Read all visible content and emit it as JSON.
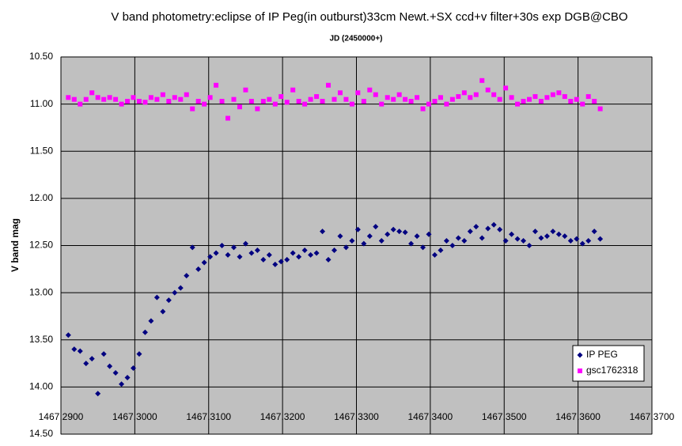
{
  "chart_data": {
    "type": "scatter",
    "title": "V band photometry:eclipse of IP Peg(in outburst)33cm Newt.+SX ccd+v filter+30s exp DGB@CBO",
    "x_label": "JD (2450000+)",
    "y_label": "V band mag",
    "x": [
      1467.291,
      1467.2918,
      1467.2926,
      1467.2934,
      1467.2942,
      1467.295,
      1467.2958,
      1467.2966,
      1467.2974,
      1467.2982,
      1467.299,
      1467.2998,
      1467.3006,
      1467.3014,
      1467.3022,
      1467.303,
      1467.3038,
      1467.3046,
      1467.3054,
      1467.3062,
      1467.307,
      1467.3078,
      1467.3086,
      1467.3094,
      1467.3102,
      1467.311,
      1467.3118,
      1467.3126,
      1467.3134,
      1467.3142,
      1467.315,
      1467.3158,
      1467.3166,
      1467.3174,
      1467.3182,
      1467.319,
      1467.3198,
      1467.3206,
      1467.3214,
      1467.3222,
      1467.323,
      1467.3238,
      1467.3246,
      1467.3254,
      1467.3262,
      1467.327,
      1467.3278,
      1467.3286,
      1467.3294,
      1467.3302,
      1467.331,
      1467.3318,
      1467.3326,
      1467.3334,
      1467.3342,
      1467.335,
      1467.3358,
      1467.3366,
      1467.3374,
      1467.3382,
      1467.339,
      1467.3398,
      1467.3406,
      1467.3414,
      1467.3422,
      1467.343,
      1467.3438,
      1467.3446,
      1467.3454,
      1467.3462,
      1467.347,
      1467.3478,
      1467.3486,
      1467.3494,
      1467.3502,
      1467.351,
      1467.3518,
      1467.3526,
      1467.3534,
      1467.3542,
      1467.355,
      1467.3558,
      1467.3566,
      1467.3574,
      1467.3582,
      1467.359,
      1467.3598,
      1467.3606,
      1467.3614,
      1467.3622,
      1467.363
    ],
    "series": [
      {
        "name": "IP PEG",
        "color": "#000080",
        "marker": "diamond",
        "values": [
          13.45,
          13.6,
          13.62,
          13.75,
          13.7,
          14.07,
          13.65,
          13.78,
          13.85,
          13.97,
          13.9,
          13.8,
          13.65,
          13.42,
          13.3,
          13.05,
          13.2,
          13.08,
          13.0,
          12.95,
          12.82,
          12.52,
          12.75,
          12.68,
          12.62,
          12.58,
          12.5,
          12.6,
          12.52,
          12.62,
          12.48,
          12.58,
          12.55,
          12.65,
          12.6,
          12.7,
          12.67,
          12.65,
          12.58,
          12.62,
          12.55,
          12.6,
          12.58,
          12.35,
          12.65,
          12.55,
          12.4,
          12.52,
          12.45,
          12.33,
          12.48,
          12.4,
          12.3,
          12.45,
          12.38,
          12.33,
          12.35,
          12.36,
          12.48,
          12.4,
          12.52,
          12.38,
          12.6,
          12.55,
          12.45,
          12.5,
          12.42,
          12.45,
          12.35,
          12.3,
          12.42,
          12.32,
          12.28,
          12.33,
          12.45,
          12.38,
          12.43,
          12.45,
          12.5,
          12.35,
          12.42,
          12.4,
          12.35,
          12.38,
          12.4,
          12.45,
          12.43,
          12.48,
          12.45,
          12.35,
          12.43
        ]
      },
      {
        "name": "gsc1762318",
        "color": "#ff00ff",
        "marker": "square",
        "values": [
          10.93,
          10.95,
          11.0,
          10.95,
          10.88,
          10.93,
          10.95,
          10.93,
          10.95,
          11.0,
          10.97,
          10.93,
          10.97,
          10.98,
          10.93,
          10.95,
          10.9,
          10.97,
          10.93,
          10.95,
          10.9,
          11.05,
          10.97,
          11.0,
          10.93,
          10.8,
          10.97,
          11.15,
          10.95,
          11.03,
          10.85,
          10.97,
          11.05,
          10.97,
          10.95,
          11.0,
          10.92,
          10.98,
          10.85,
          10.97,
          11.0,
          10.95,
          10.92,
          10.97,
          10.8,
          10.95,
          10.88,
          10.95,
          11.0,
          10.88,
          10.97,
          10.85,
          10.9,
          11.0,
          10.93,
          10.95,
          10.9,
          10.95,
          10.97,
          10.93,
          11.05,
          11.0,
          10.97,
          10.93,
          11.0,
          10.95,
          10.92,
          10.88,
          10.93,
          10.9,
          10.75,
          10.85,
          10.9,
          10.95,
          10.83,
          10.93,
          11.0,
          10.97,
          10.95,
          10.92,
          10.97,
          10.93,
          10.9,
          10.88,
          10.92,
          10.97,
          10.95,
          11.0,
          10.92,
          10.97,
          11.05
        ]
      }
    ],
    "xlim": [
      1467.29,
      1467.37
    ],
    "xticks": [
      {
        "value": 1467.29,
        "label": "1467.2900"
      },
      {
        "value": 1467.3,
        "label": "1467.3000"
      },
      {
        "value": 1467.31,
        "label": "1467.3100"
      },
      {
        "value": 1467.32,
        "label": "1467.3200"
      },
      {
        "value": 1467.33,
        "label": "1467.3300"
      },
      {
        "value": 1467.34,
        "label": "1467.3400"
      },
      {
        "value": 1467.35,
        "label": "1467.3500"
      },
      {
        "value": 1467.36,
        "label": "1467.3600"
      },
      {
        "value": 1467.37,
        "label": "1467.3700"
      }
    ],
    "ylim": [
      10.5,
      14.5
    ],
    "y_reversed": true,
    "yticks": [
      {
        "value": 10.5,
        "label": "10.50"
      },
      {
        "value": 11.0,
        "label": "11.00"
      },
      {
        "value": 11.5,
        "label": "11.50"
      },
      {
        "value": 12.0,
        "label": "12.00"
      },
      {
        "value": 12.5,
        "label": "12.50"
      },
      {
        "value": 13.0,
        "label": "13.00"
      },
      {
        "value": 13.5,
        "label": "13.50"
      },
      {
        "value": 14.0,
        "label": "14.00"
      },
      {
        "value": 14.5,
        "label": "14.50"
      }
    ],
    "grid": true,
    "plot_background": "#c0c0c0",
    "legend": "lower right"
  }
}
